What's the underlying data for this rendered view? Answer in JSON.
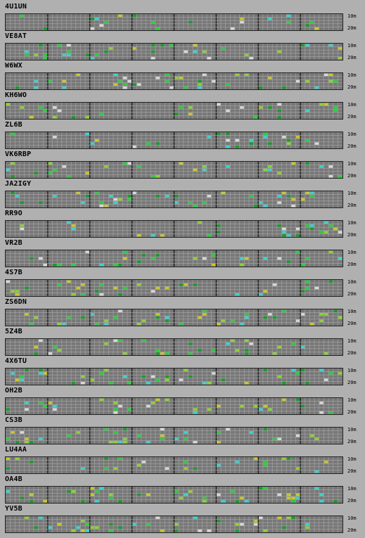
{
  "stations": [
    {
      "callsign": "4U1UN"
    },
    {
      "callsign": "VE8AT"
    },
    {
      "callsign": "W6WX"
    },
    {
      "callsign": "KH6WO"
    },
    {
      "callsign": "ZL6B"
    },
    {
      "callsign": "VK6RBP"
    },
    {
      "callsign": "JA2IGY"
    },
    {
      "callsign": "RR9O"
    },
    {
      "callsign": "VR2B"
    },
    {
      "callsign": "4S7B"
    },
    {
      "callsign": "ZS6DN"
    },
    {
      "callsign": "5Z4B"
    },
    {
      "callsign": "4X6TU"
    },
    {
      "callsign": "OH2B"
    },
    {
      "callsign": "CS3B"
    },
    {
      "callsign": "LU4AA"
    },
    {
      "callsign": "OA4B"
    },
    {
      "callsign": "YV5B"
    }
  ],
  "band_labels": {
    "top": "10m",
    "bottom": "20m"
  },
  "colors": {
    "background": "#b0b0b0",
    "cell": "#777777",
    "gridline": "#a8a8a8",
    "divider": "#111111",
    "spots": [
      "#2ecc40",
      "#c8c830",
      "#40d0d0",
      "#d8d8d8",
      "#8fd03a",
      "#1a9a2a"
    ]
  }
}
